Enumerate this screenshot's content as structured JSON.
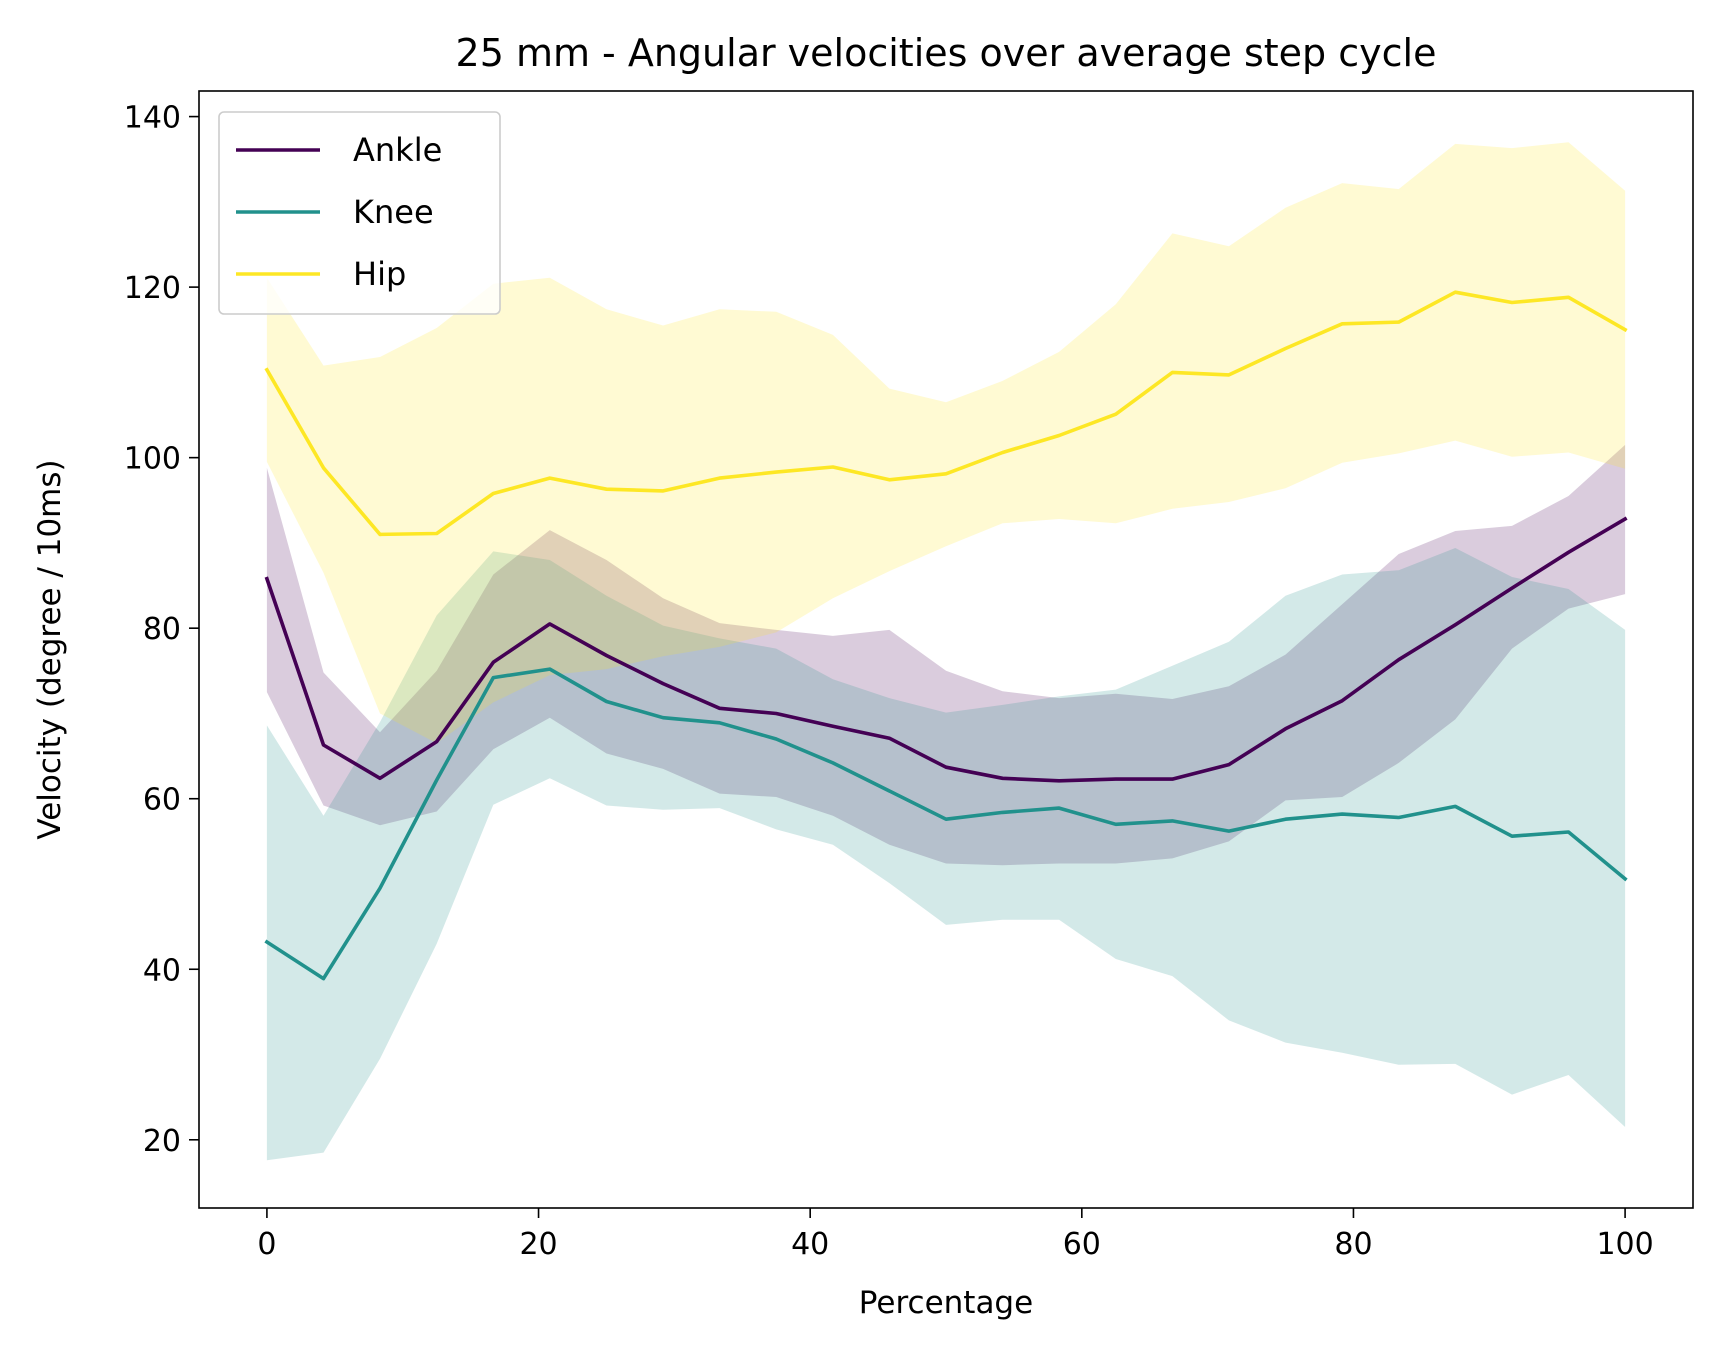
{
  "chart_data": {
    "type": "line",
    "title": "25 mm - Angular velocities over average step cycle",
    "xlabel": "Percentage",
    "ylabel": "Velocity (degree / 10ms)",
    "xlim": [
      -5,
      105
    ],
    "ylim": [
      12,
      143
    ],
    "xticks": [
      0,
      20,
      40,
      60,
      80,
      100
    ],
    "yticks": [
      20,
      40,
      60,
      80,
      100,
      120,
      140
    ],
    "grid": false,
    "legend_position": "upper-left",
    "x": [
      0,
      4.17,
      8.33,
      12.5,
      16.67,
      20.83,
      25,
      29.17,
      33.33,
      37.5,
      41.67,
      45.83,
      50,
      54.17,
      58.33,
      62.5,
      66.67,
      70.83,
      75,
      79.17,
      83.33,
      87.5,
      91.67,
      95.83,
      100
    ],
    "series": [
      {
        "name": "Ankle",
        "color": "#440154",
        "values": [
          85.8,
          66.3,
          62.4,
          66.7,
          76.0,
          80.5,
          76.8,
          73.5,
          70.6,
          70.0,
          68.5,
          67.1,
          63.7,
          62.4,
          62.1,
          62.3,
          62.3,
          64.0,
          68.2,
          71.5,
          76.3,
          80.4,
          84.7,
          88.9,
          92.8
        ],
        "lower": [
          72.5,
          59.2,
          56.9,
          58.5,
          65.8,
          69.5,
          65.3,
          63.5,
          60.6,
          60.2,
          58.0,
          54.6,
          52.4,
          52.2,
          52.4,
          52.4,
          53.0,
          55.0,
          59.8,
          60.2,
          64.2,
          69.3,
          77.6,
          82.3,
          84.0
        ],
        "upper": [
          98.8,
          74.8,
          67.8,
          75.0,
          86.3,
          91.5,
          88.0,
          83.5,
          80.6,
          79.8,
          79.1,
          79.8,
          75.0,
          72.6,
          71.8,
          72.3,
          71.7,
          73.2,
          76.9,
          82.8,
          88.7,
          91.4,
          92.0,
          95.5,
          101.5
        ]
      },
      {
        "name": "Knee",
        "color": "#21918c",
        "values": [
          43.2,
          38.9,
          49.5,
          62.2,
          74.2,
          75.2,
          71.4,
          69.5,
          68.9,
          67.0,
          64.2,
          60.9,
          57.6,
          58.4,
          58.9,
          57.0,
          57.4,
          56.2,
          57.6,
          58.2,
          57.8,
          59.1,
          55.6,
          56.1,
          50.6
        ],
        "lower": [
          17.6,
          18.5,
          29.5,
          43.0,
          59.3,
          62.4,
          59.2,
          58.7,
          58.9,
          56.4,
          54.6,
          50.1,
          45.2,
          45.8,
          45.8,
          41.2,
          39.2,
          34.0,
          31.4,
          30.2,
          28.8,
          28.9,
          25.3,
          27.6,
          21.5
        ],
        "upper": [
          68.6,
          58.0,
          69.0,
          81.5,
          89.0,
          88.0,
          83.8,
          80.3,
          78.8,
          77.6,
          74.0,
          71.8,
          70.1,
          71.0,
          72.0,
          72.8,
          75.6,
          78.4,
          83.8,
          86.3,
          86.8,
          89.4,
          86.0,
          84.6,
          79.8
        ]
      },
      {
        "name": "Hip",
        "color": "#fde725",
        "values": [
          110.3,
          98.8,
          91.0,
          91.1,
          95.8,
          97.6,
          96.3,
          96.1,
          97.6,
          98.3,
          98.9,
          97.4,
          98.1,
          100.6,
          102.6,
          105.1,
          110.0,
          109.7,
          112.8,
          115.7,
          115.9,
          119.4,
          118.2,
          118.8,
          115.0
        ],
        "lower": [
          99.5,
          86.5,
          70.0,
          66.5,
          71.3,
          74.5,
          75.2,
          76.7,
          77.8,
          79.5,
          83.5,
          86.7,
          89.6,
          92.3,
          92.8,
          92.3,
          94.0,
          94.8,
          96.4,
          99.4,
          100.5,
          102.0,
          100.1,
          100.6,
          98.7
        ],
        "upper": [
          121.1,
          110.8,
          111.8,
          115.2,
          120.4,
          121.1,
          117.4,
          115.5,
          117.4,
          117.1,
          114.4,
          108.1,
          106.5,
          109.0,
          112.4,
          118.0,
          126.3,
          124.8,
          129.3,
          132.2,
          131.5,
          136.8,
          136.3,
          137.0,
          131.3
        ]
      }
    ]
  }
}
